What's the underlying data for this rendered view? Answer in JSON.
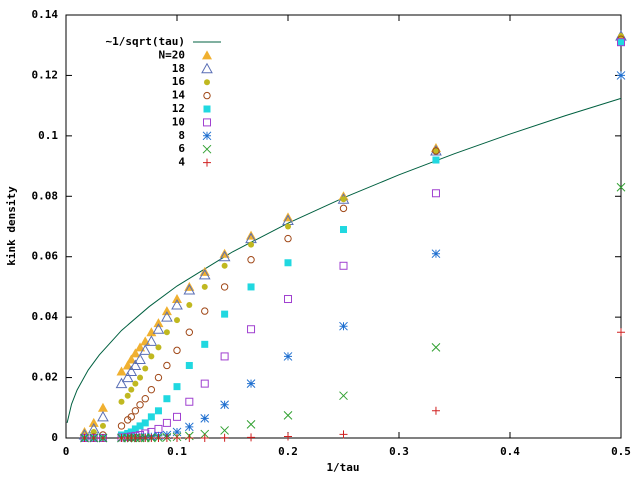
{
  "chart_data": {
    "type": "scatter",
    "xlabel": "1/tau",
    "ylabel": "kink density",
    "xlim": [
      0,
      0.5
    ],
    "ylim": [
      0,
      0.14
    ],
    "xticks": [
      0,
      0.1,
      0.2,
      0.3,
      0.4,
      0.5
    ],
    "yticks": [
      0,
      0.02,
      0.04,
      0.06,
      0.08,
      0.1,
      0.12,
      0.14
    ],
    "legend": "upper left",
    "x": [
      0.5,
      0.3333,
      0.25,
      0.2,
      0.1667,
      0.1429,
      0.125,
      0.1111,
      0.1,
      0.0909,
      0.0833,
      0.0769,
      0.0714,
      0.0667,
      0.0625,
      0.0588,
      0.0556,
      0.05,
      0.0333,
      0.025,
      0.0167
    ],
    "line": {
      "type": "line",
      "name": "~1/sqrt(tau)",
      "color": "#006040",
      "x": [
        0.001,
        0.005,
        0.01,
        0.02,
        0.03,
        0.05,
        0.075,
        0.1,
        0.15,
        0.2,
        0.25,
        0.3,
        0.35,
        0.4,
        0.45,
        0.5
      ],
      "values": [
        0.005,
        0.0112,
        0.0159,
        0.0225,
        0.0275,
        0.0356,
        0.0435,
        0.0503,
        0.0616,
        0.0711,
        0.0795,
        0.0871,
        0.0941,
        0.1006,
        0.1067,
        0.1124
      ]
    },
    "series": [
      {
        "name": "N=20",
        "color": "#f0b030",
        "marker": "triangle-filled",
        "values": [
          0.133,
          0.096,
          0.08,
          0.073,
          0.067,
          0.061,
          0.055,
          0.05,
          0.046,
          0.042,
          0.038,
          0.035,
          0.032,
          0.03,
          0.028,
          0.026,
          0.024,
          0.022,
          0.01,
          0.005,
          0.002
        ]
      },
      {
        "name": "18",
        "color": "#5a6fb5",
        "marker": "triangle-open",
        "values": [
          0.133,
          0.095,
          0.079,
          0.072,
          0.066,
          0.06,
          0.054,
          0.049,
          0.044,
          0.04,
          0.036,
          0.032,
          0.029,
          0.026,
          0.024,
          0.022,
          0.02,
          0.018,
          0.007,
          0.003,
          0.001
        ]
      },
      {
        "name": "16",
        "color": "#c0b820",
        "marker": "circle-filled",
        "values": [
          0.133,
          0.095,
          0.079,
          0.07,
          0.064,
          0.057,
          0.05,
          0.044,
          0.039,
          0.035,
          0.03,
          0.027,
          0.023,
          0.02,
          0.018,
          0.016,
          0.014,
          0.012,
          0.004,
          0.002,
          0.0005
        ]
      },
      {
        "name": "14",
        "color": "#a04818",
        "marker": "circle-open",
        "values": [
          0.132,
          0.095,
          0.076,
          0.066,
          0.059,
          0.05,
          0.042,
          0.035,
          0.029,
          0.024,
          0.02,
          0.016,
          0.013,
          0.011,
          0.009,
          0.007,
          0.006,
          0.004,
          0.001,
          0.0003,
          0
        ]
      },
      {
        "name": "12",
        "color": "#20d8e0",
        "marker": "square-filled",
        "values": [
          0.131,
          0.092,
          0.069,
          0.058,
          0.05,
          0.041,
          0.031,
          0.024,
          0.017,
          0.013,
          0.009,
          0.007,
          0.005,
          0.004,
          0.003,
          0.002,
          0.0015,
          0.001,
          0.0002,
          0,
          0
        ]
      },
      {
        "name": "10",
        "color": "#a040d0",
        "marker": "square-open",
        "values": [
          0.131,
          0.081,
          0.057,
          0.046,
          0.036,
          0.027,
          0.018,
          0.012,
          0.007,
          0.005,
          0.003,
          0.002,
          0.0015,
          0.001,
          0.0007,
          0.0005,
          0.0003,
          0.0002,
          0,
          0,
          0
        ]
      },
      {
        "name": "8",
        "color": "#2070d0",
        "marker": "star",
        "values": [
          0.12,
          0.061,
          0.037,
          0.027,
          0.018,
          0.011,
          0.0065,
          0.0037,
          0.002,
          0.001,
          0.0007,
          0.0004,
          0.0003,
          0.0002,
          0.0001,
          0,
          0,
          0,
          0,
          0,
          0
        ]
      },
      {
        "name": "6",
        "color": "#30a030",
        "marker": "cross",
        "values": [
          0.083,
          0.03,
          0.014,
          0.0075,
          0.0045,
          0.0025,
          0.0013,
          0.0007,
          0.0004,
          0.0002,
          0.0001,
          0,
          0,
          0,
          0,
          0,
          0,
          0,
          0,
          0,
          0
        ]
      },
      {
        "name": "4",
        "color": "#d02020",
        "marker": "plus",
        "values": [
          0.035,
          0.009,
          0.0012,
          0.0005,
          0.0002,
          0.0001,
          0,
          0,
          0,
          0,
          0,
          0,
          0,
          0,
          0,
          0,
          0,
          0,
          0,
          0,
          0
        ]
      }
    ]
  }
}
